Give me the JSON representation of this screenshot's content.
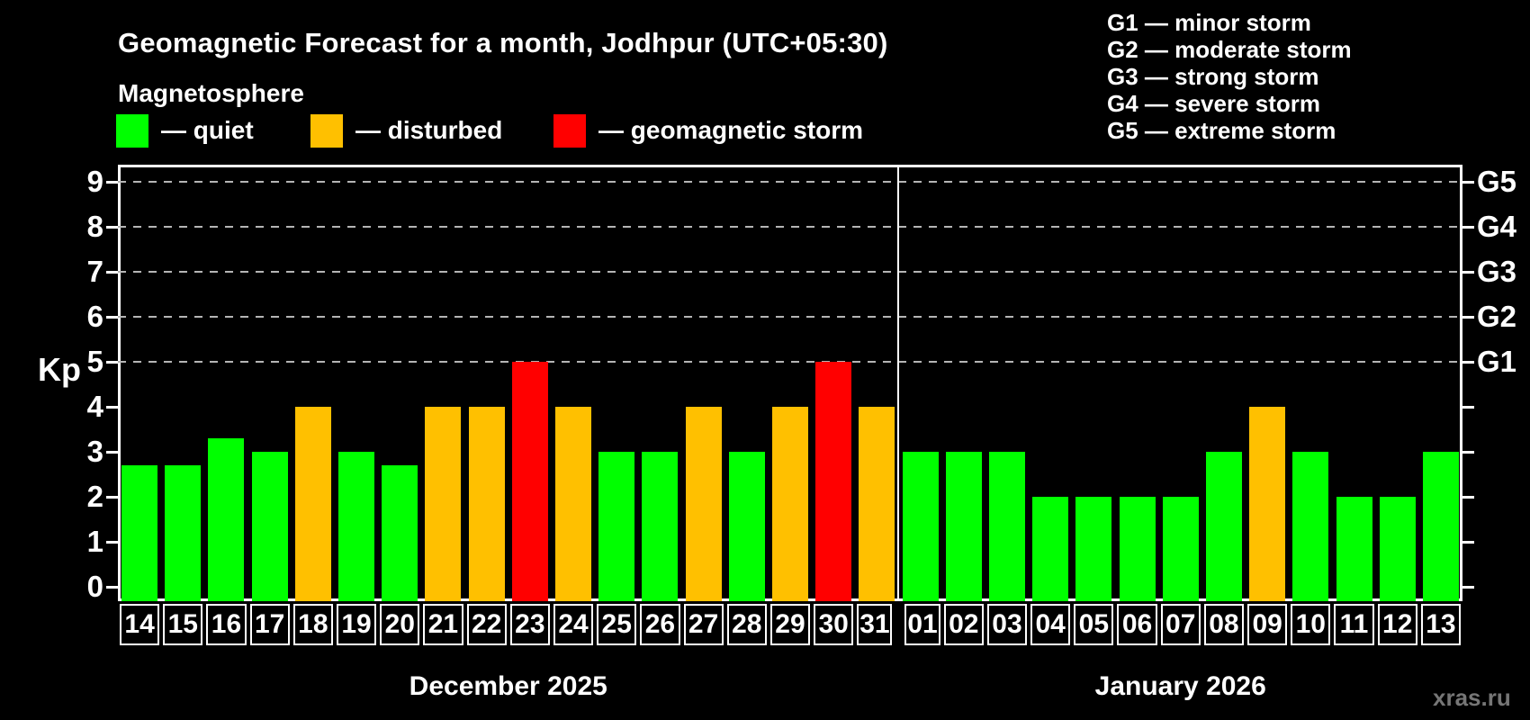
{
  "header": {
    "title": "Geomagnetic Forecast for a month, Jodhpur (UTC+05:30)",
    "subtitle": "Magnetosphere",
    "legend": [
      {
        "key": "quiet",
        "label": "— quiet",
        "color": "#00ff00"
      },
      {
        "key": "disturbed",
        "label": "— disturbed",
        "color": "#ffc000"
      },
      {
        "key": "storm",
        "label": "— geomagnetic storm",
        "color": "#ff0000"
      }
    ],
    "g_scale_legend": [
      "G1 — minor storm",
      "G2 — moderate storm",
      "G3 — strong storm",
      "G4 — severe storm",
      "G5 — extreme storm"
    ]
  },
  "chart_data": {
    "type": "bar",
    "title": "Geomagnetic Forecast for a month, Jodhpur (UTC+05:30)",
    "ylabel": "Kp",
    "ylim": [
      0,
      9.4
    ],
    "yticks": [
      0,
      1,
      2,
      3,
      4,
      5,
      6,
      7,
      8,
      9
    ],
    "gridline_levels": [
      5,
      6,
      7,
      8,
      9
    ],
    "grid": "dashed horizontal at storm levels only",
    "legend_position": "top",
    "right_axis": [
      {
        "kp": 5,
        "label": "G1"
      },
      {
        "kp": 6,
        "label": "G2"
      },
      {
        "kp": 7,
        "label": "G3"
      },
      {
        "kp": 8,
        "label": "G4"
      },
      {
        "kp": 9,
        "label": "G5"
      }
    ],
    "status_colors": {
      "quiet": "#00ff00",
      "disturbed": "#ffc000",
      "storm": "#ff0000"
    },
    "months": [
      {
        "label": "December 2025",
        "days": [
          {
            "day": "14",
            "kp": 2.7,
            "status": "quiet"
          },
          {
            "day": "15",
            "kp": 2.7,
            "status": "quiet"
          },
          {
            "day": "16",
            "kp": 3.3,
            "status": "quiet"
          },
          {
            "day": "17",
            "kp": 3,
            "status": "quiet"
          },
          {
            "day": "18",
            "kp": 4,
            "status": "disturbed"
          },
          {
            "day": "19",
            "kp": 3,
            "status": "quiet"
          },
          {
            "day": "20",
            "kp": 2.7,
            "status": "quiet"
          },
          {
            "day": "21",
            "kp": 4,
            "status": "disturbed"
          },
          {
            "day": "22",
            "kp": 4,
            "status": "disturbed"
          },
          {
            "day": "23",
            "kp": 5,
            "status": "storm"
          },
          {
            "day": "24",
            "kp": 4,
            "status": "disturbed"
          },
          {
            "day": "25",
            "kp": 3,
            "status": "quiet"
          },
          {
            "day": "26",
            "kp": 3,
            "status": "quiet"
          },
          {
            "day": "27",
            "kp": 4,
            "status": "disturbed"
          },
          {
            "day": "28",
            "kp": 3,
            "status": "quiet"
          },
          {
            "day": "29",
            "kp": 4,
            "status": "disturbed"
          },
          {
            "day": "30",
            "kp": 5,
            "status": "storm"
          },
          {
            "day": "31",
            "kp": 4,
            "status": "disturbed"
          }
        ]
      },
      {
        "label": "January 2026",
        "days": [
          {
            "day": "01",
            "kp": 3,
            "status": "quiet"
          },
          {
            "day": "02",
            "kp": 3,
            "status": "quiet"
          },
          {
            "day": "03",
            "kp": 3,
            "status": "quiet"
          },
          {
            "day": "04",
            "kp": 2,
            "status": "quiet"
          },
          {
            "day": "05",
            "kp": 2,
            "status": "quiet"
          },
          {
            "day": "06",
            "kp": 2,
            "status": "quiet"
          },
          {
            "day": "07",
            "kp": 2,
            "status": "quiet"
          },
          {
            "day": "08",
            "kp": 3,
            "status": "quiet"
          },
          {
            "day": "09",
            "kp": 4,
            "status": "disturbed"
          },
          {
            "day": "10",
            "kp": 3,
            "status": "quiet"
          },
          {
            "day": "11",
            "kp": 2,
            "status": "quiet"
          },
          {
            "day": "12",
            "kp": 2,
            "status": "quiet"
          },
          {
            "day": "13",
            "kp": 3,
            "status": "quiet"
          }
        ]
      }
    ]
  },
  "watermark": "xras.ru"
}
